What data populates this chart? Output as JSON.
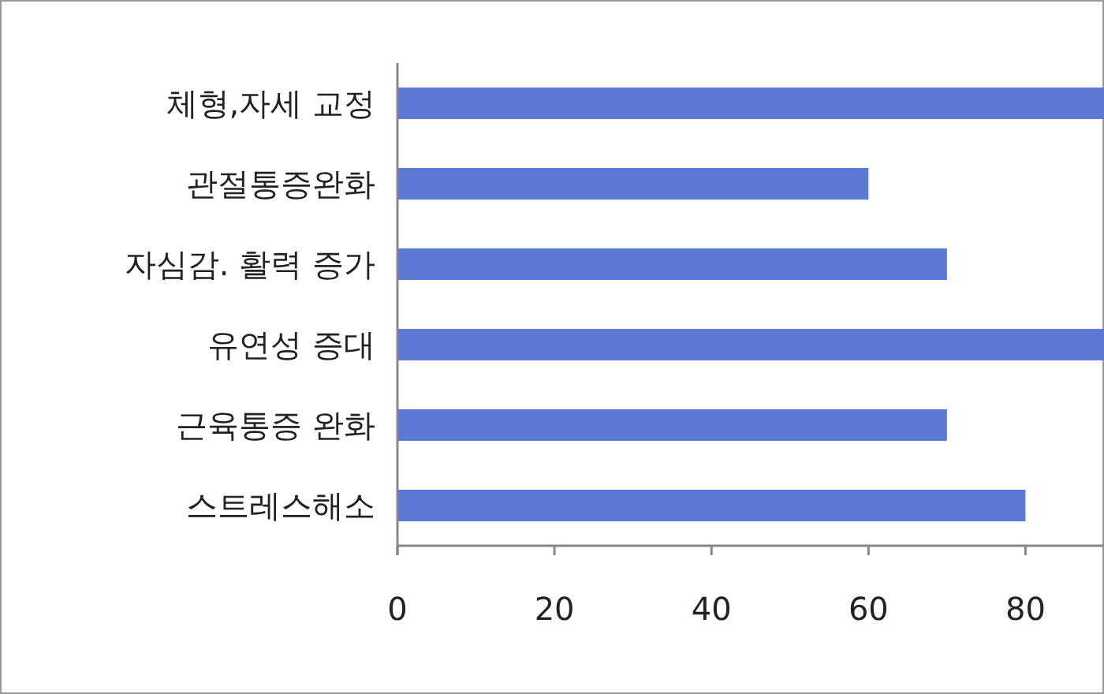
{
  "chart_data": {
    "type": "bar",
    "orientation": "horizontal",
    "categories": [
      "체형,자세 교정",
      "관절통증완화",
      "자심감. 활력 증가",
      "유연성 증대",
      "근육통증 완화",
      "스트레스해소"
    ],
    "values": [
      90,
      60,
      70,
      90,
      70,
      80
    ],
    "color": "#5b7ad6",
    "xlim": [
      0,
      90
    ],
    "xticks": [
      0,
      20,
      40,
      60,
      80
    ]
  }
}
